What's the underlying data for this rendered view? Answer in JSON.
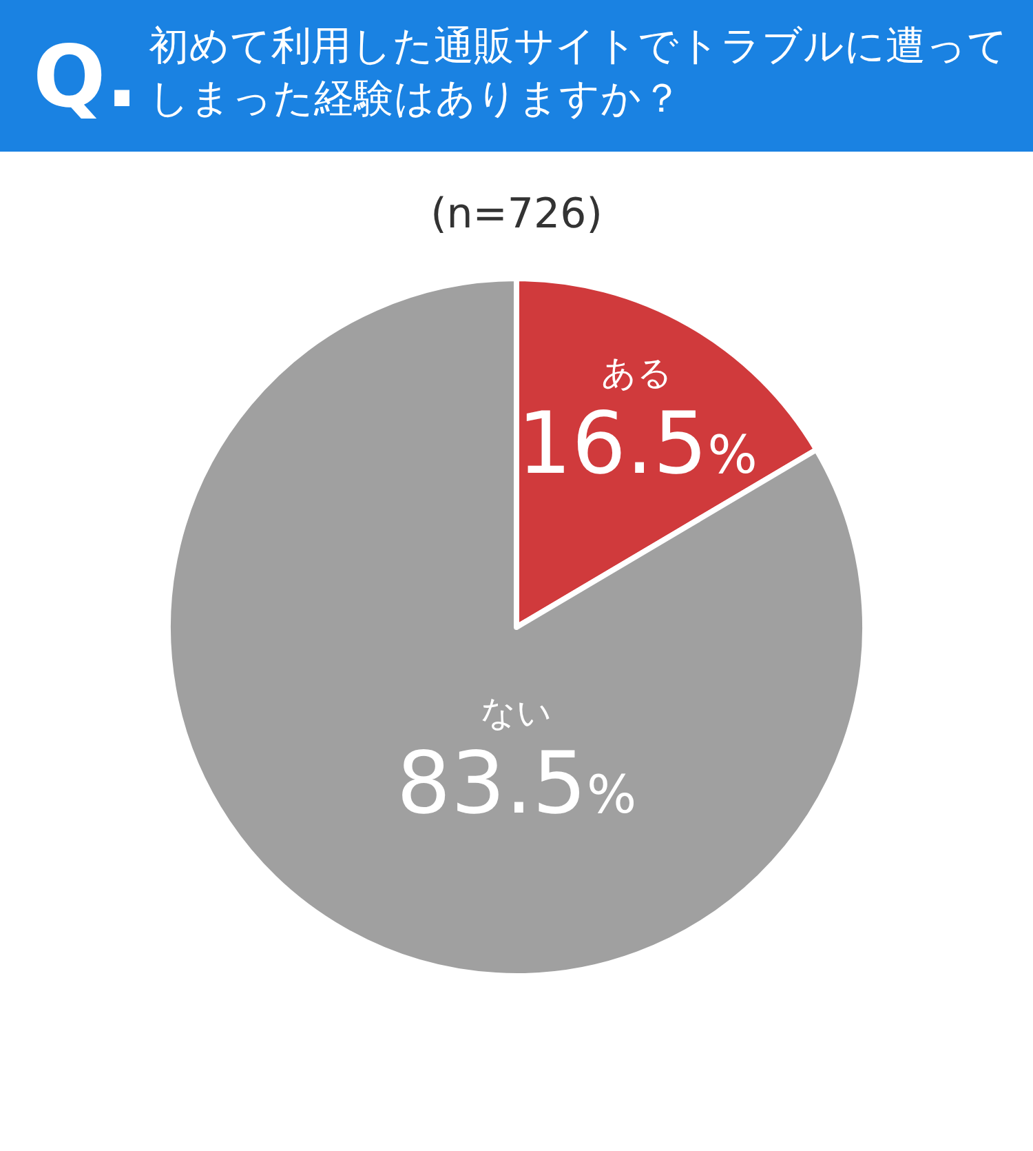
{
  "chart_data": {
    "type": "pie",
    "title": "初めて利用した通販サイトでトラブルに遭ってしまった経験はありますか？",
    "subtitle": "(n=726)",
    "annotations": [
      "Q."
    ],
    "categories": [
      "ある",
      "ない"
    ],
    "values": [
      16.5,
      83.5
    ],
    "colors": [
      "#d03a3c",
      "#a0a0a0"
    ],
    "value_labels": [
      "16.5%",
      "83.5%"
    ]
  }
}
